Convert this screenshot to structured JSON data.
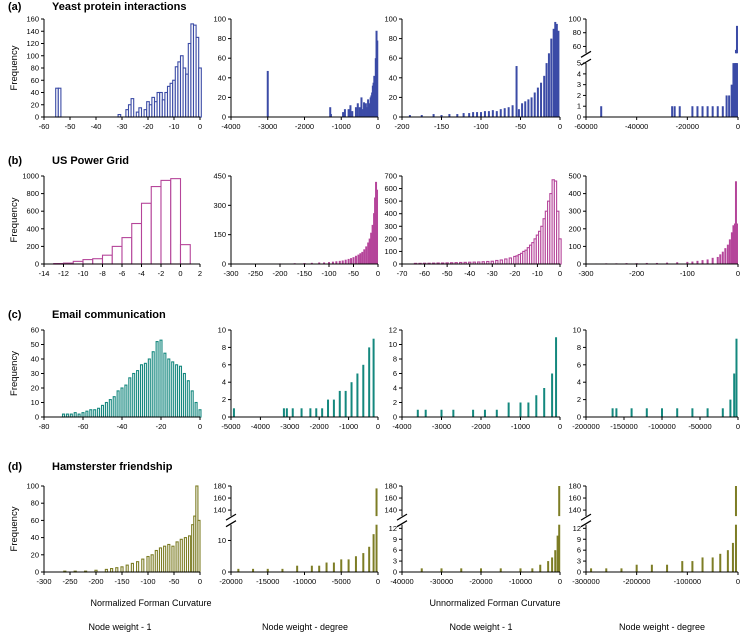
{
  "colors": {
    "yeast": "#3b4ba6",
    "power": "#b5459a",
    "email": "#14887e",
    "hamster": "#7d7d25"
  },
  "rows": [
    {
      "letter": "(a)",
      "title": "Yeast protein interactions"
    },
    {
      "letter": "(b)",
      "title": "US Power Grid"
    },
    {
      "letter": "(c)",
      "title": "Email communication"
    },
    {
      "letter": "(d)",
      "title": "Hamsterster friendship"
    }
  ],
  "ylabel": "Frequency",
  "bottom": {
    "normalized": "Normalized Forman Curvature",
    "unnormalized": "Unnormalized Forman Curvature",
    "col_labels": [
      "Node weight - 1",
      "Node weight - degree",
      "Node weight - 1",
      "Node weight - degree"
    ]
  },
  "chart_data": [
    {
      "type": "bar",
      "row": 0,
      "col": 0,
      "style": "outline",
      "xlim": [
        -60,
        0
      ],
      "xticks": [
        -60,
        -50,
        -40,
        -30,
        -20,
        -10,
        0
      ],
      "ylim": [
        0,
        160
      ],
      "yticks": [
        0,
        20,
        40,
        60,
        80,
        100,
        120,
        140,
        160
      ],
      "bin_width": 1,
      "x": [
        -55,
        -54,
        -31,
        -28,
        -27,
        -26,
        -24,
        -23,
        -21,
        -20,
        -19,
        -18,
        -17,
        -16,
        -15,
        -14,
        -13,
        -12,
        -11,
        -10,
        -9,
        -8,
        -7,
        -6,
        -5,
        -4,
        -3,
        -2,
        -1,
        0
      ],
      "values": [
        47,
        47,
        4,
        12,
        20,
        30,
        8,
        15,
        12,
        25,
        20,
        32,
        25,
        40,
        40,
        28,
        40,
        50,
        55,
        60,
        82,
        90,
        100,
        80,
        70,
        120,
        152,
        150,
        130,
        80
      ]
    },
    {
      "type": "bar",
      "row": 0,
      "col": 1,
      "style": "solid",
      "xlim": [
        -4000,
        0
      ],
      "xticks": [
        -4000,
        -3000,
        -2000,
        -1000,
        0
      ],
      "ylim": [
        0,
        100
      ],
      "yticks": [
        0,
        20,
        40,
        60,
        80,
        100
      ],
      "x": [
        -3000,
        -1300,
        -1280,
        -950,
        -900,
        -800,
        -750,
        -700,
        -600,
        -550,
        -500,
        -450,
        -420,
        -380,
        -330,
        -300,
        -270,
        -240,
        -200,
        -180,
        -160,
        -140,
        -120,
        -100,
        -80,
        -60,
        -40,
        -20
      ],
      "values": [
        47,
        10,
        3,
        5,
        8,
        8,
        12,
        6,
        10,
        14,
        10,
        20,
        8,
        15,
        14,
        10,
        18,
        14,
        20,
        22,
        25,
        32,
        35,
        42,
        40,
        60,
        88,
        78
      ]
    },
    {
      "type": "bar",
      "row": 0,
      "col": 2,
      "style": "solid",
      "xlim": [
        -200,
        0
      ],
      "xticks": [
        -200,
        -150,
        -100,
        -50,
        0
      ],
      "ylim": [
        0,
        100
      ],
      "yticks": [
        0,
        20,
        40,
        60,
        80,
        100
      ],
      "x": [
        -190,
        -175,
        -160,
        -150,
        -140,
        -130,
        -122,
        -115,
        -110,
        -105,
        -100,
        -95,
        -90,
        -85,
        -80,
        -75,
        -70,
        -65,
        -60,
        -55,
        -52,
        -48,
        -44,
        -40,
        -36,
        -32,
        -28,
        -24,
        -20,
        -17,
        -14,
        -11,
        -8,
        -6,
        -4,
        -2
      ],
      "values": [
        2,
        2,
        3,
        2,
        3,
        3,
        4,
        4,
        5,
        5,
        5,
        6,
        6,
        7,
        6,
        8,
        9,
        10,
        12,
        52,
        8,
        14,
        16,
        18,
        20,
        25,
        30,
        35,
        42,
        55,
        65,
        80,
        90,
        97,
        95,
        88
      ]
    },
    {
      "type": "bar",
      "row": 0,
      "col": 3,
      "style": "solid",
      "broken": true,
      "xlim": [
        -60000,
        0
      ],
      "xticks": [
        -60000,
        -40000,
        -20000,
        0
      ],
      "ylim_low": [
        0,
        5
      ],
      "yticks_low": [
        0,
        1,
        2,
        3,
        4,
        5
      ],
      "ylim_high": [
        50,
        100
      ],
      "yticks_high": [
        60,
        80,
        100
      ],
      "x": [
        -54000,
        -26000,
        -25000,
        -23000,
        -18000,
        -16000,
        -14000,
        -12000,
        -10000,
        -8000,
        -6000,
        -4500,
        -3500,
        -2500,
        -1800,
        -1200,
        -800,
        -400
      ],
      "values": [
        1,
        1,
        1,
        1,
        1,
        1,
        1,
        1,
        1,
        1,
        1,
        2,
        2,
        3,
        5,
        30,
        55,
        90
      ]
    },
    {
      "type": "bar",
      "row": 1,
      "col": 0,
      "style": "outline",
      "xlim": [
        -14,
        2
      ],
      "xticks": [
        -14,
        -12,
        -10,
        -8,
        -6,
        -4,
        -2,
        0,
        2
      ],
      "ylim": [
        0,
        1000
      ],
      "yticks": [
        0,
        200,
        400,
        600,
        800,
        1000
      ],
      "bin_width": 1,
      "x": [
        -12.5,
        -11.5,
        -10.5,
        -9.5,
        -8.5,
        -7.5,
        -6.5,
        -5.5,
        -4.5,
        -3.5,
        -2.5,
        -1.5,
        -0.5,
        0.5
      ],
      "values": [
        5,
        10,
        30,
        50,
        60,
        100,
        200,
        300,
        460,
        690,
        880,
        950,
        970,
        220
      ]
    },
    {
      "type": "bar",
      "row": 1,
      "col": 1,
      "style": "solid",
      "xlim": [
        -300,
        0
      ],
      "xticks": [
        -300,
        -250,
        -200,
        -150,
        -100,
        -50,
        0
      ],
      "ylim": [
        0,
        450
      ],
      "yticks": [
        0,
        150,
        300,
        450
      ],
      "x": [
        -230,
        -200,
        -170,
        -150,
        -135,
        -120,
        -110,
        -100,
        -92,
        -85,
        -78,
        -72,
        -66,
        -60,
        -55,
        -50,
        -45,
        -40,
        -36,
        -32,
        -28,
        -24,
        -20,
        -17,
        -14,
        -11,
        -8,
        -6,
        -4,
        -2
      ],
      "values": [
        2,
        3,
        4,
        5,
        6,
        8,
        8,
        10,
        12,
        14,
        16,
        18,
        22,
        26,
        30,
        35,
        42,
        48,
        55,
        62,
        75,
        90,
        110,
        130,
        160,
        200,
        260,
        340,
        420,
        380
      ]
    },
    {
      "type": "bar",
      "row": 1,
      "col": 2,
      "style": "outline",
      "xlim": [
        -70,
        0
      ],
      "xticks": [
        -70,
        -60,
        -50,
        -40,
        -30,
        -20,
        -10,
        0
      ],
      "ylim": [
        0,
        700
      ],
      "yticks": [
        0,
        100,
        200,
        300,
        400,
        500,
        600,
        700
      ],
      "bin_width": 1,
      "x": [
        -64,
        -62,
        -60,
        -58,
        -56,
        -54,
        -52,
        -50,
        -48,
        -46,
        -44,
        -42,
        -40,
        -38,
        -36,
        -34,
        -32,
        -30,
        -28,
        -26,
        -24,
        -22,
        -20,
        -19,
        -18,
        -17,
        -16,
        -15,
        -14,
        -13,
        -12,
        -11,
        -10,
        -9,
        -8,
        -7,
        -6,
        -5,
        -4,
        -3,
        -2,
        -1,
        0
      ],
      "values": [
        5,
        5,
        6,
        6,
        7,
        8,
        8,
        9,
        10,
        11,
        12,
        13,
        14,
        15,
        16,
        18,
        20,
        22,
        28,
        32,
        40,
        48,
        60,
        65,
        75,
        85,
        100,
        110,
        130,
        150,
        170,
        200,
        230,
        260,
        300,
        360,
        420,
        500,
        560,
        670,
        660,
        420,
        200
      ]
    },
    {
      "type": "bar",
      "row": 1,
      "col": 3,
      "style": "solid",
      "xlim": [
        -300,
        0
      ],
      "xticks": [
        -300,
        -200,
        -100,
        0
      ],
      "ylim": [
        0,
        500
      ],
      "yticks": [
        0,
        100,
        200,
        300,
        400,
        500
      ],
      "x": [
        -280,
        -260,
        -240,
        -220,
        -200,
        -180,
        -160,
        -140,
        -120,
        -100,
        -90,
        -80,
        -70,
        -60,
        -50,
        -40,
        -35,
        -30,
        -25,
        -20,
        -16,
        -12,
        -9,
        -6,
        -4,
        -2
      ],
      "values": [
        3,
        4,
        4,
        5,
        5,
        6,
        6,
        8,
        10,
        12,
        14,
        18,
        22,
        26,
        35,
        40,
        55,
        70,
        90,
        110,
        140,
        180,
        220,
        230,
        470,
        230
      ]
    },
    {
      "type": "bar",
      "row": 2,
      "col": 0,
      "style": "outline",
      "xlim": [
        -80,
        0
      ],
      "xticks": [
        -80,
        -60,
        -40,
        -20,
        0
      ],
      "ylim": [
        0,
        60
      ],
      "yticks": [
        0,
        10,
        20,
        30,
        40,
        50,
        60
      ],
      "bin_width": 1,
      "x": [
        -70,
        -68,
        -66,
        -64,
        -62,
        -60,
        -58,
        -56,
        -54,
        -52,
        -50,
        -48,
        -46,
        -44,
        -42,
        -40,
        -38,
        -36,
        -34,
        -32,
        -30,
        -28,
        -26,
        -24,
        -22,
        -20,
        -18,
        -16,
        -14,
        -12,
        -10,
        -8,
        -6,
        -4,
        -2,
        0
      ],
      "values": [
        2,
        2,
        2,
        3,
        2,
        3,
        4,
        5,
        5,
        6,
        8,
        10,
        12,
        14,
        18,
        20,
        22,
        27,
        30,
        32,
        36,
        37,
        40,
        45,
        52,
        53,
        44,
        40,
        38,
        36,
        35,
        30,
        25,
        18,
        10,
        5
      ]
    },
    {
      "type": "bar",
      "row": 2,
      "col": 1,
      "style": "solid",
      "xlim": [
        -5000,
        0
      ],
      "xticks": [
        -5000,
        -4000,
        -3000,
        -2000,
        -1000,
        0
      ],
      "ylim": [
        0,
        10
      ],
      "yticks": [
        0,
        2,
        4,
        6,
        8,
        10
      ],
      "x": [
        -4900,
        -3200,
        -3100,
        -2900,
        -2600,
        -2300,
        -2100,
        -1900,
        -1700,
        -1500,
        -1300,
        -1100,
        -900,
        -700,
        -500,
        -300,
        -150
      ],
      "values": [
        1,
        1,
        1,
        1,
        1,
        1,
        1,
        1,
        2,
        2,
        3,
        3,
        4,
        5,
        6,
        8,
        9
      ]
    },
    {
      "type": "bar",
      "row": 2,
      "col": 2,
      "style": "solid",
      "xlim": [
        -4000,
        0
      ],
      "xticks": [
        -4000,
        -3000,
        -2000,
        -1000,
        0
      ],
      "ylim": [
        0,
        12
      ],
      "yticks": [
        0,
        2,
        4,
        6,
        8,
        10,
        12
      ],
      "x": [
        -3600,
        -3400,
        -3000,
        -2700,
        -2200,
        -1900,
        -1600,
        -1300,
        -1000,
        -800,
        -600,
        -400,
        -200,
        -100
      ],
      "values": [
        1,
        1,
        1,
        1,
        1,
        1,
        1,
        2,
        2,
        2,
        3,
        4,
        6,
        11
      ]
    },
    {
      "type": "bar",
      "row": 2,
      "col": 3,
      "style": "solid",
      "xlim": [
        -200000,
        0
      ],
      "xticks": [
        -200000,
        -150000,
        -100000,
        -50000,
        0
      ],
      "ylim": [
        0,
        10
      ],
      "yticks": [
        0,
        2,
        4,
        6,
        8,
        10
      ],
      "x": [
        -165000,
        -160000,
        -140000,
        -120000,
        -100000,
        -80000,
        -60000,
        -40000,
        -20000,
        -10000,
        -5000,
        -2000
      ],
      "values": [
        1,
        1,
        1,
        1,
        1,
        1,
        1,
        1,
        1,
        2,
        5,
        9
      ]
    },
    {
      "type": "bar",
      "row": 3,
      "col": 0,
      "style": "outline",
      "xlim": [
        -300,
        0
      ],
      "xticks": [
        -300,
        -250,
        -200,
        -150,
        -100,
        -50,
        0
      ],
      "ylim": [
        0,
        100
      ],
      "yticks": [
        0,
        20,
        40,
        60,
        80,
        100
      ],
      "bin_width": 4,
      "x": [
        -260,
        -240,
        -220,
        -200,
        -180,
        -170,
        -160,
        -150,
        -140,
        -130,
        -120,
        -110,
        -100,
        -92,
        -84,
        -76,
        -68,
        -60,
        -52,
        -44,
        -36,
        -28,
        -20,
        -14,
        -10,
        -6,
        -2
      ],
      "values": [
        1,
        1,
        1,
        2,
        3,
        4,
        5,
        6,
        8,
        10,
        12,
        15,
        18,
        20,
        25,
        28,
        30,
        32,
        30,
        35,
        38,
        40,
        42,
        55,
        65,
        100,
        60
      ]
    },
    {
      "type": "bar",
      "row": 3,
      "col": 1,
      "style": "solid",
      "broken": true,
      "xlim": [
        -20000,
        0
      ],
      "xticks": [
        -20000,
        -15000,
        -10000,
        -5000,
        0
      ],
      "ylim_low": [
        0,
        15
      ],
      "yticks_low": [
        0,
        10
      ],
      "ylim_high": [
        130,
        180
      ],
      "yticks_high": [
        140,
        160,
        180
      ],
      "x": [
        -19000,
        -17000,
        -15000,
        -13000,
        -11000,
        -9000,
        -8000,
        -7000,
        -6000,
        -5000,
        -4000,
        -3000,
        -2000,
        -1200,
        -600,
        -200
      ],
      "values": [
        1,
        1,
        1,
        1,
        2,
        2,
        2,
        3,
        3,
        4,
        4,
        5,
        6,
        8,
        12,
        176
      ]
    },
    {
      "type": "bar",
      "row": 3,
      "col": 2,
      "style": "solid",
      "broken": true,
      "xlim": [
        -40000,
        0
      ],
      "xticks": [
        -40000,
        -30000,
        -20000,
        -10000,
        0
      ],
      "ylim_low": [
        0,
        13
      ],
      "yticks_low": [
        0,
        3,
        6,
        9,
        12
      ],
      "ylim_high": [
        130,
        180
      ],
      "yticks_high": [
        140,
        160,
        180
      ],
      "x": [
        -35000,
        -30000,
        -25000,
        -20000,
        -15000,
        -10000,
        -7000,
        -5000,
        -3000,
        -2000,
        -1200,
        -600,
        -200
      ],
      "values": [
        1,
        1,
        1,
        1,
        1,
        1,
        1,
        2,
        3,
        4,
        6,
        10,
        180
      ]
    },
    {
      "type": "bar",
      "row": 3,
      "col": 3,
      "style": "solid",
      "broken": true,
      "xlim": [
        -300000,
        0
      ],
      "xticks": [
        -300000,
        -200000,
        -100000,
        0
      ],
      "ylim_low": [
        0,
        13
      ],
      "yticks_low": [
        0,
        3,
        6,
        9,
        12
      ],
      "ylim_high": [
        130,
        180
      ],
      "yticks_high": [
        140,
        160,
        180
      ],
      "x": [
        -290000,
        -260000,
        -230000,
        -200000,
        -170000,
        -140000,
        -110000,
        -90000,
        -70000,
        -50000,
        -35000,
        -20000,
        -10000,
        -4000
      ],
      "values": [
        1,
        1,
        1,
        2,
        2,
        2,
        3,
        3,
        4,
        4,
        5,
        6,
        8,
        180
      ]
    }
  ]
}
